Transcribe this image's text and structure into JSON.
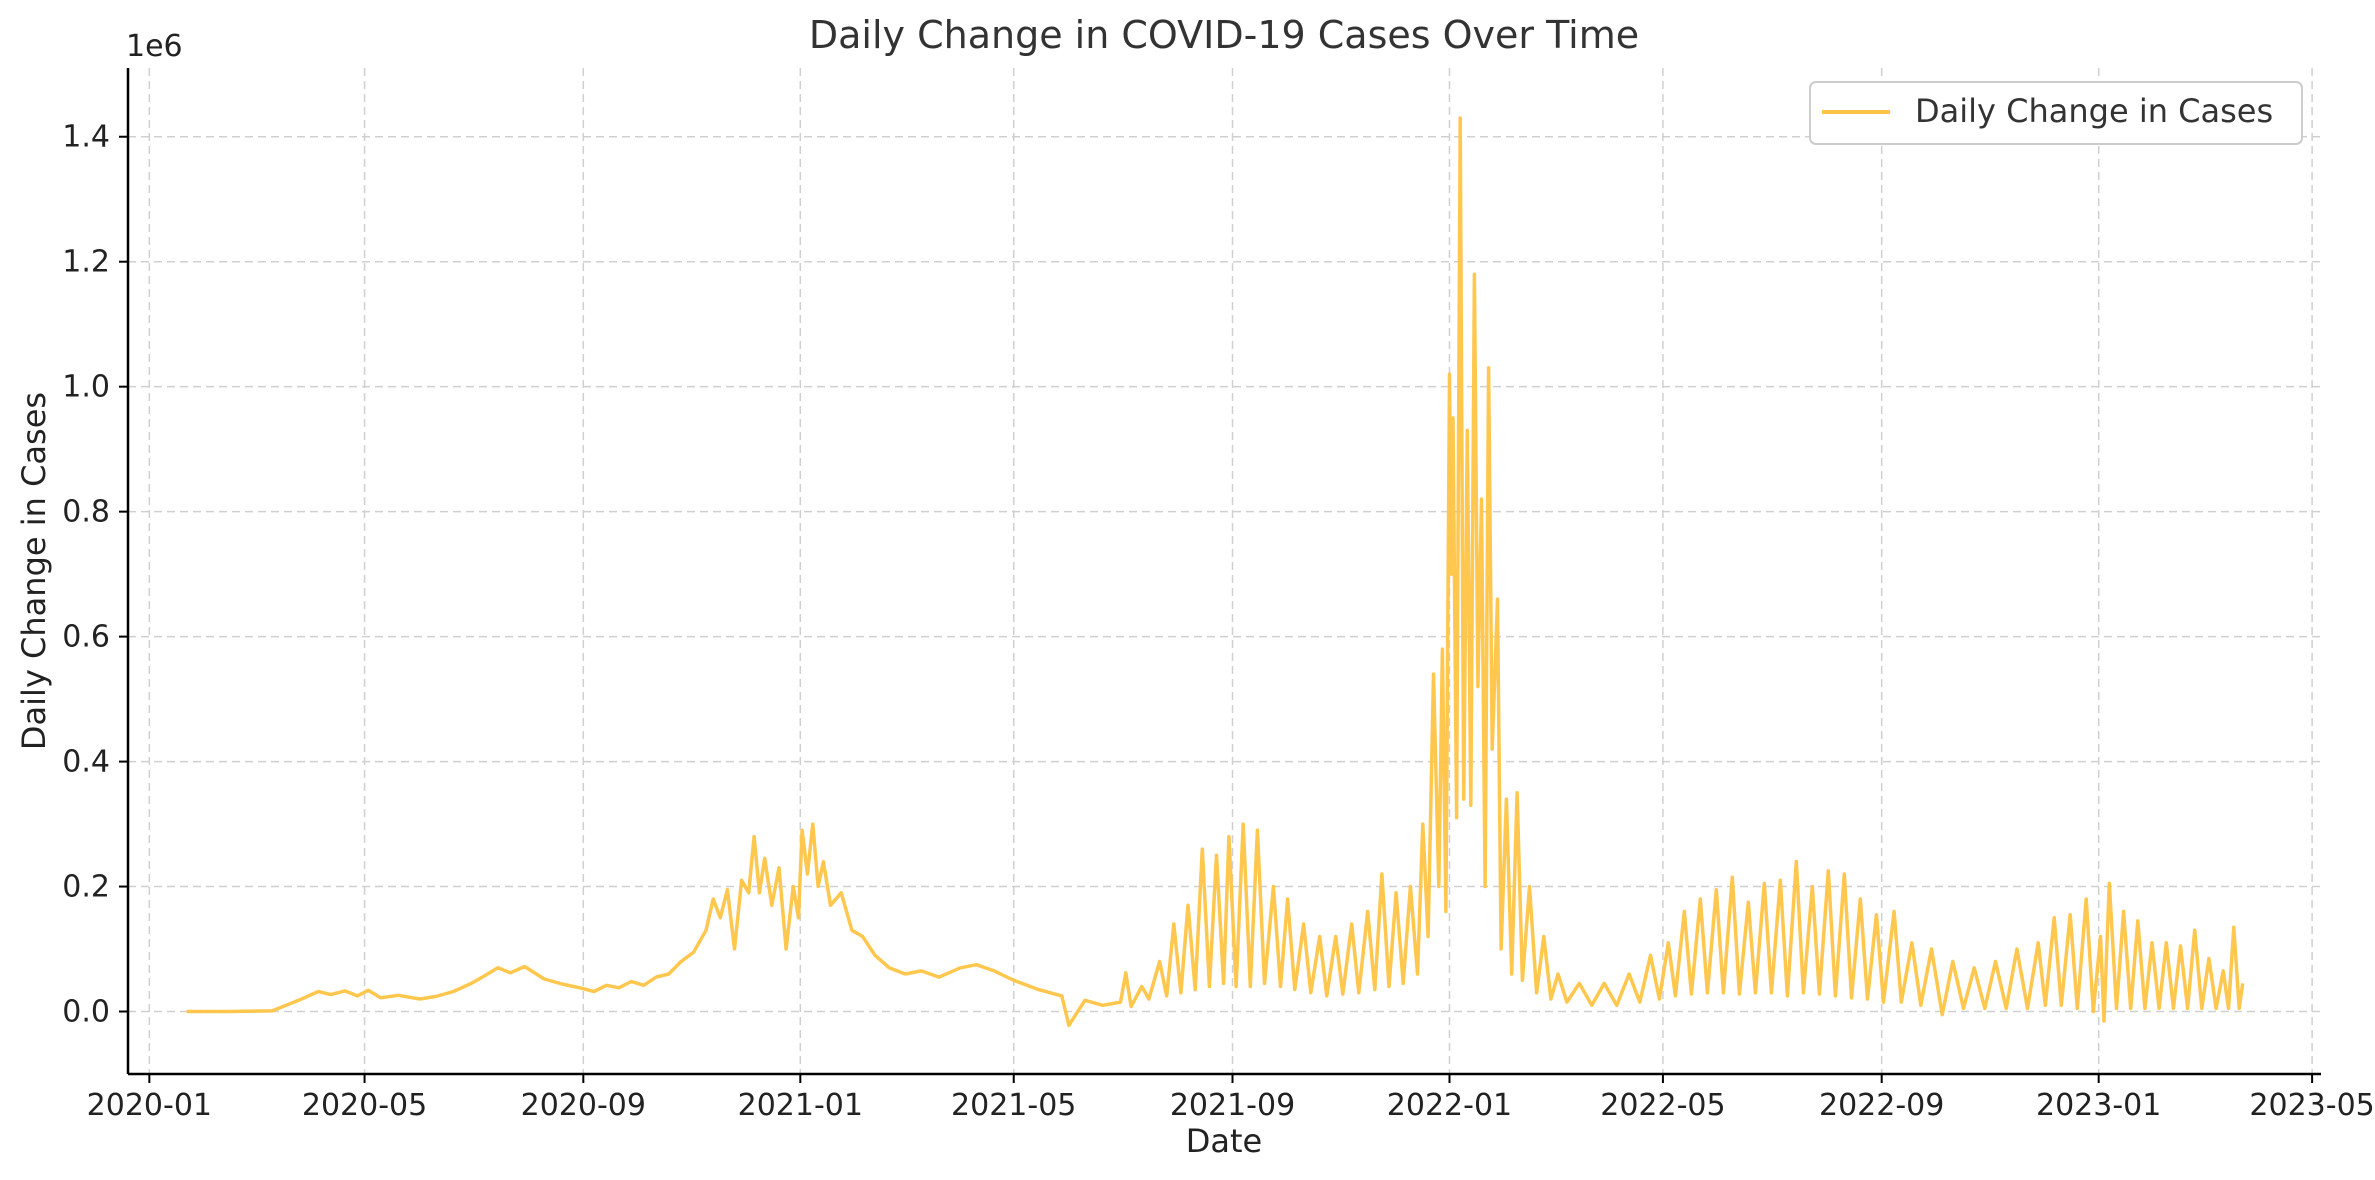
{
  "chart_data": {
    "type": "line",
    "title": "Daily Change in COVID-19 Cases Over Time",
    "xlabel": "Date",
    "ylabel": "Daily Change in Cases",
    "y_offset_label": "1e6",
    "xlim": [
      "2019-12-20",
      "2023-05-06"
    ],
    "ylim": [
      -100000,
      1510000
    ],
    "x_ticks": [
      "2020-01-01",
      "2020-05-01",
      "2020-09-01",
      "2021-01-01",
      "2021-05-01",
      "2021-09-01",
      "2022-01-01",
      "2022-05-01",
      "2022-09-01",
      "2023-01-01",
      "2023-05-01"
    ],
    "x_tick_labels": [
      "2020-01",
      "2020-05",
      "2020-09",
      "2021-01",
      "2021-05",
      "2021-09",
      "2022-01",
      "2022-05",
      "2022-09",
      "2023-01",
      "2023-05"
    ],
    "y_ticks": [
      0,
      200000,
      400000,
      600000,
      800000,
      1000000,
      1200000,
      1400000
    ],
    "y_tick_labels": [
      "0.0",
      "0.2",
      "0.4",
      "0.6",
      "0.8",
      "1.0",
      "1.2",
      "1.4"
    ],
    "grid": true,
    "legend_position": "top-right",
    "color": "#FFC444",
    "series": [
      {
        "name": "Daily Change in Cases",
        "points": [
          [
            "2020-01-22",
            0
          ],
          [
            "2020-02-15",
            0
          ],
          [
            "2020-03-10",
            1000
          ],
          [
            "2020-03-25",
            18000
          ],
          [
            "2020-04-05",
            32000
          ],
          [
            "2020-04-12",
            27000
          ],
          [
            "2020-04-20",
            33000
          ],
          [
            "2020-04-27",
            25000
          ],
          [
            "2020-05-03",
            34000
          ],
          [
            "2020-05-10",
            22000
          ],
          [
            "2020-05-20",
            26000
          ],
          [
            "2020-06-01",
            20000
          ],
          [
            "2020-06-10",
            24000
          ],
          [
            "2020-06-20",
            32000
          ],
          [
            "2020-06-30",
            45000
          ],
          [
            "2020-07-08",
            58000
          ],
          [
            "2020-07-15",
            70000
          ],
          [
            "2020-07-22",
            62000
          ],
          [
            "2020-07-30",
            72000
          ],
          [
            "2020-08-10",
            52000
          ],
          [
            "2020-08-20",
            44000
          ],
          [
            "2020-08-30",
            38000
          ],
          [
            "2020-09-07",
            32000
          ],
          [
            "2020-09-14",
            42000
          ],
          [
            "2020-09-21",
            38000
          ],
          [
            "2020-09-28",
            48000
          ],
          [
            "2020-10-05",
            42000
          ],
          [
            "2020-10-12",
            55000
          ],
          [
            "2020-10-19",
            60000
          ],
          [
            "2020-10-26",
            80000
          ],
          [
            "2020-11-02",
            95000
          ],
          [
            "2020-11-09",
            130000
          ],
          [
            "2020-11-13",
            180000
          ],
          [
            "2020-11-17",
            150000
          ],
          [
            "2020-11-21",
            195000
          ],
          [
            "2020-11-25",
            100000
          ],
          [
            "2020-11-29",
            210000
          ],
          [
            "2020-12-03",
            190000
          ],
          [
            "2020-12-06",
            280000
          ],
          [
            "2020-12-09",
            190000
          ],
          [
            "2020-12-12",
            245000
          ],
          [
            "2020-12-16",
            170000
          ],
          [
            "2020-12-20",
            230000
          ],
          [
            "2020-12-24",
            100000
          ],
          [
            "2020-12-28",
            200000
          ],
          [
            "2020-12-31",
            150000
          ],
          [
            "2021-01-02",
            290000
          ],
          [
            "2021-01-05",
            220000
          ],
          [
            "2021-01-08",
            300000
          ],
          [
            "2021-01-11",
            200000
          ],
          [
            "2021-01-14",
            240000
          ],
          [
            "2021-01-18",
            170000
          ],
          [
            "2021-01-24",
            190000
          ],
          [
            "2021-01-30",
            130000
          ],
          [
            "2021-02-05",
            120000
          ],
          [
            "2021-02-12",
            90000
          ],
          [
            "2021-02-20",
            70000
          ],
          [
            "2021-03-01",
            60000
          ],
          [
            "2021-03-10",
            65000
          ],
          [
            "2021-03-20",
            55000
          ],
          [
            "2021-04-01",
            70000
          ],
          [
            "2021-04-10",
            75000
          ],
          [
            "2021-04-20",
            65000
          ],
          [
            "2021-05-01",
            50000
          ],
          [
            "2021-05-15",
            35000
          ],
          [
            "2021-05-28",
            25000
          ],
          [
            "2021-06-01",
            -22000
          ],
          [
            "2021-06-10",
            18000
          ],
          [
            "2021-06-20",
            10000
          ],
          [
            "2021-06-30",
            15000
          ],
          [
            "2021-07-03",
            62000
          ],
          [
            "2021-07-06",
            8000
          ],
          [
            "2021-07-12",
            40000
          ],
          [
            "2021-07-16",
            20000
          ],
          [
            "2021-07-22",
            80000
          ],
          [
            "2021-07-26",
            25000
          ],
          [
            "2021-07-30",
            140000
          ],
          [
            "2021-08-03",
            30000
          ],
          [
            "2021-08-07",
            170000
          ],
          [
            "2021-08-11",
            35000
          ],
          [
            "2021-08-15",
            260000
          ],
          [
            "2021-08-19",
            40000
          ],
          [
            "2021-08-23",
            250000
          ],
          [
            "2021-08-27",
            45000
          ],
          [
            "2021-08-30",
            280000
          ],
          [
            "2021-09-03",
            40000
          ],
          [
            "2021-09-07",
            300000
          ],
          [
            "2021-09-11",
            40000
          ],
          [
            "2021-09-15",
            290000
          ],
          [
            "2021-09-19",
            45000
          ],
          [
            "2021-09-24",
            200000
          ],
          [
            "2021-09-28",
            40000
          ],
          [
            "2021-10-02",
            180000
          ],
          [
            "2021-10-06",
            35000
          ],
          [
            "2021-10-11",
            140000
          ],
          [
            "2021-10-15",
            30000
          ],
          [
            "2021-10-20",
            120000
          ],
          [
            "2021-10-24",
            25000
          ],
          [
            "2021-10-29",
            120000
          ],
          [
            "2021-11-02",
            28000
          ],
          [
            "2021-11-07",
            140000
          ],
          [
            "2021-11-11",
            30000
          ],
          [
            "2021-11-16",
            160000
          ],
          [
            "2021-11-20",
            35000
          ],
          [
            "2021-11-24",
            220000
          ],
          [
            "2021-11-28",
            40000
          ],
          [
            "2021-12-02",
            190000
          ],
          [
            "2021-12-06",
            45000
          ],
          [
            "2021-12-10",
            200000
          ],
          [
            "2021-12-14",
            60000
          ],
          [
            "2021-12-17",
            300000
          ],
          [
            "2021-12-20",
            120000
          ],
          [
            "2021-12-23",
            540000
          ],
          [
            "2021-12-26",
            200000
          ],
          [
            "2021-12-28",
            580000
          ],
          [
            "2021-12-30",
            160000
          ],
          [
            "2022-01-01",
            1020000
          ],
          [
            "2022-01-02",
            700000
          ],
          [
            "2022-01-03",
            950000
          ],
          [
            "2022-01-05",
            310000
          ],
          [
            "2022-01-07",
            1430000
          ],
          [
            "2022-01-09",
            340000
          ],
          [
            "2022-01-11",
            930000
          ],
          [
            "2022-01-13",
            330000
          ],
          [
            "2022-01-15",
            1180000
          ],
          [
            "2022-01-17",
            520000
          ],
          [
            "2022-01-19",
            820000
          ],
          [
            "2022-01-21",
            200000
          ],
          [
            "2022-01-23",
            1030000
          ],
          [
            "2022-01-25",
            420000
          ],
          [
            "2022-01-28",
            660000
          ],
          [
            "2022-01-30",
            100000
          ],
          [
            "2022-02-02",
            340000
          ],
          [
            "2022-02-05",
            60000
          ],
          [
            "2022-02-08",
            350000
          ],
          [
            "2022-02-11",
            50000
          ],
          [
            "2022-02-15",
            200000
          ],
          [
            "2022-02-19",
            30000
          ],
          [
            "2022-02-23",
            120000
          ],
          [
            "2022-02-27",
            20000
          ],
          [
            "2022-03-03",
            60000
          ],
          [
            "2022-03-08",
            15000
          ],
          [
            "2022-03-15",
            45000
          ],
          [
            "2022-03-22",
            10000
          ],
          [
            "2022-03-29",
            45000
          ],
          [
            "2022-04-05",
            10000
          ],
          [
            "2022-04-12",
            60000
          ],
          [
            "2022-04-18",
            15000
          ],
          [
            "2022-04-24",
            90000
          ],
          [
            "2022-04-29",
            20000
          ],
          [
            "2022-05-04",
            110000
          ],
          [
            "2022-05-08",
            25000
          ],
          [
            "2022-05-13",
            160000
          ],
          [
            "2022-05-17",
            28000
          ],
          [
            "2022-05-22",
            180000
          ],
          [
            "2022-05-26",
            30000
          ],
          [
            "2022-05-31",
            195000
          ],
          [
            "2022-06-04",
            30000
          ],
          [
            "2022-06-09",
            215000
          ],
          [
            "2022-06-13",
            28000
          ],
          [
            "2022-06-18",
            175000
          ],
          [
            "2022-06-22",
            30000
          ],
          [
            "2022-06-27",
            205000
          ],
          [
            "2022-07-01",
            30000
          ],
          [
            "2022-07-06",
            210000
          ],
          [
            "2022-07-10",
            25000
          ],
          [
            "2022-07-15",
            240000
          ],
          [
            "2022-07-19",
            30000
          ],
          [
            "2022-07-24",
            200000
          ],
          [
            "2022-07-28",
            28000
          ],
          [
            "2022-08-02",
            225000
          ],
          [
            "2022-08-06",
            25000
          ],
          [
            "2022-08-11",
            220000
          ],
          [
            "2022-08-15",
            22000
          ],
          [
            "2022-08-20",
            180000
          ],
          [
            "2022-08-24",
            20000
          ],
          [
            "2022-08-29",
            155000
          ],
          [
            "2022-09-02",
            15000
          ],
          [
            "2022-09-08",
            160000
          ],
          [
            "2022-09-12",
            15000
          ],
          [
            "2022-09-18",
            110000
          ],
          [
            "2022-09-23",
            10000
          ],
          [
            "2022-09-29",
            100000
          ],
          [
            "2022-10-05",
            -5000
          ],
          [
            "2022-10-11",
            80000
          ],
          [
            "2022-10-17",
            5000
          ],
          [
            "2022-10-23",
            70000
          ],
          [
            "2022-10-29",
            5000
          ],
          [
            "2022-11-04",
            80000
          ],
          [
            "2022-11-10",
            5000
          ],
          [
            "2022-11-16",
            100000
          ],
          [
            "2022-11-22",
            5000
          ],
          [
            "2022-11-28",
            110000
          ],
          [
            "2022-12-02",
            10000
          ],
          [
            "2022-12-07",
            150000
          ],
          [
            "2022-12-11",
            10000
          ],
          [
            "2022-12-16",
            155000
          ],
          [
            "2022-12-20",
            5000
          ],
          [
            "2022-12-25",
            180000
          ],
          [
            "2022-12-29",
            0
          ],
          [
            "2023-01-02",
            120000
          ],
          [
            "2023-01-04",
            -15000
          ],
          [
            "2023-01-07",
            205000
          ],
          [
            "2023-01-11",
            5000
          ],
          [
            "2023-01-15",
            160000
          ],
          [
            "2023-01-19",
            5000
          ],
          [
            "2023-01-23",
            145000
          ],
          [
            "2023-01-27",
            5000
          ],
          [
            "2023-01-31",
            110000
          ],
          [
            "2023-02-04",
            5000
          ],
          [
            "2023-02-08",
            110000
          ],
          [
            "2023-02-12",
            5000
          ],
          [
            "2023-02-16",
            105000
          ],
          [
            "2023-02-20",
            5000
          ],
          [
            "2023-02-24",
            130000
          ],
          [
            "2023-02-28",
            5000
          ],
          [
            "2023-03-04",
            85000
          ],
          [
            "2023-03-08",
            5000
          ],
          [
            "2023-03-12",
            65000
          ],
          [
            "2023-03-15",
            5000
          ],
          [
            "2023-03-18",
            135000
          ],
          [
            "2023-03-21",
            5000
          ],
          [
            "2023-03-23",
            45000
          ]
        ]
      }
    ]
  }
}
